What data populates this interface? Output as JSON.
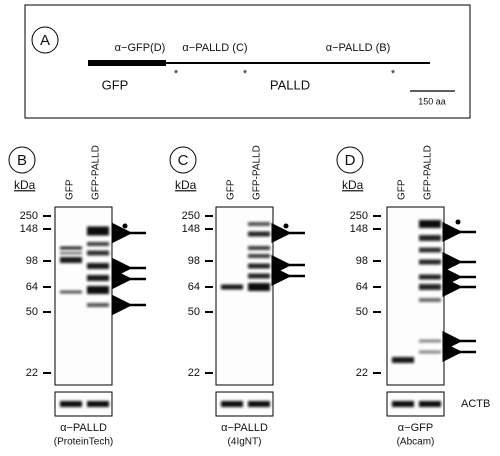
{
  "panel_a": {
    "label": "A",
    "antibody_labels": [
      "α−GFP(D)",
      "α−PALLD (C)",
      "α−PALLD (B)"
    ],
    "asterisks": [
      "*",
      "*",
      "*"
    ],
    "domains": [
      "GFP",
      "PALLD"
    ],
    "scale_label": "150 aa"
  },
  "panels": [
    {
      "label": "B",
      "kda_label": "kDa",
      "markers": [
        "250",
        "148",
        "98",
        "64",
        "50",
        "22"
      ],
      "lanes": [
        "GFP",
        "GFP-PALLD"
      ],
      "caption": [
        "α−PALLD",
        "(ProteinTech)"
      ]
    },
    {
      "label": "C",
      "kda_label": "kDa",
      "markers": [
        "250",
        "148",
        "98",
        "64",
        "50",
        "22"
      ],
      "lanes": [
        "GFP",
        "GFP-PALLD"
      ],
      "caption": [
        "α−PALLD",
        "(4IgNT)"
      ]
    },
    {
      "label": "D",
      "kda_label": "kDa",
      "markers": [
        "250",
        "148",
        "98",
        "64",
        "50",
        "22"
      ],
      "lanes": [
        "GFP",
        "GFP-PALLD"
      ],
      "caption": [
        "α−GFP",
        "(Abcam)"
      ]
    }
  ],
  "loading_control": "ACTB"
}
